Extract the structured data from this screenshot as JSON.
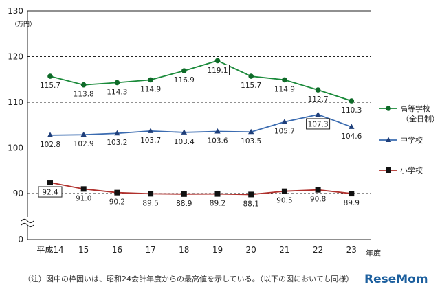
{
  "chart_data": {
    "type": "line",
    "unit_label": "（万円）",
    "x_unit_label": "年度",
    "categories": [
      "平成14",
      "15",
      "16",
      "17",
      "18",
      "19",
      "20",
      "21",
      "22",
      "23"
    ],
    "ylim": [
      0,
      130
    ],
    "yticks": [
      0,
      90,
      100,
      110,
      120,
      130
    ],
    "axis_break": true,
    "series": [
      {
        "name": "高等学校",
        "subname": "（全日制）",
        "marker": "circle",
        "color": "#1a8a3a",
        "values": [
          115.7,
          113.8,
          114.3,
          114.9,
          116.9,
          119.1,
          115.7,
          114.9,
          112.7,
          110.3
        ],
        "highlight_index": 5
      },
      {
        "name": "中学校",
        "marker": "triangle",
        "color": "#3a6bb0",
        "values": [
          102.8,
          102.9,
          103.2,
          103.7,
          103.4,
          103.6,
          103.5,
          105.7,
          107.3,
          104.6
        ],
        "highlight_index": 8
      },
      {
        "name": "小学校",
        "marker": "square",
        "color": "#b0302c",
        "values": [
          92.4,
          91.0,
          90.2,
          89.5,
          88.9,
          89.2,
          88.1,
          90.5,
          90.8,
          89.9
        ],
        "highlight_index": 0
      }
    ]
  },
  "footnote": "（注）図中の枠囲いは、昭和24会計年度からの最高値を示している。（以下の図においても同様）",
  "logo": {
    "text": "ReseMom",
    "color": "#1c5f9e"
  }
}
